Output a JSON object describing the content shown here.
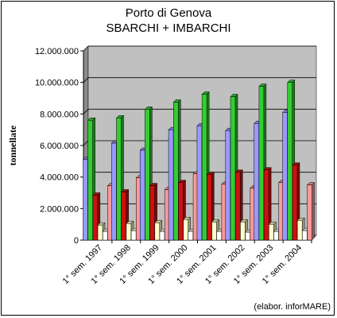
{
  "chart_data": {
    "type": "bar",
    "title": "Porto di Genova",
    "subtitle": "SBARCHI + IMBARCHI",
    "ylabel": "tonnellate",
    "xlabel": "",
    "credit": "(elabor. inforMARE)",
    "categories": [
      "1° sem. 1997",
      "1° sem. 1998",
      "1° sem. 1999",
      "1° sem. 2000",
      "1° sem. 2001",
      "1° sem. 2002",
      "1° sem. 2003",
      "1° sem. 2004"
    ],
    "ylim": [
      0,
      12000000
    ],
    "yticks": [
      0,
      2000000,
      4000000,
      6000000,
      8000000,
      10000000,
      12000000
    ],
    "ytick_labels": [
      "0",
      "2.000.000",
      "4.000.000",
      "6.000.000",
      "8.000.000",
      "10.000.000",
      "12.000.000"
    ],
    "grid": true,
    "plot_background": "#c0c0c0",
    "series": [
      {
        "color": "#9999ff",
        "values": [
          5100000,
          6150000,
          5700000,
          7000000,
          7250000,
          6950000,
          7400000,
          8100000
        ]
      },
      {
        "color": "#33cc33",
        "values": [
          7600000,
          7750000,
          8300000,
          8750000,
          9250000,
          9100000,
          9750000,
          10000000
        ]
      },
      {
        "color": "#cc1111",
        "values": [
          2850000,
          3050000,
          3450000,
          3650000,
          4150000,
          4300000,
          4450000,
          4750000
        ]
      },
      {
        "color": "#ffffcc",
        "values": [
          950000,
          1050000,
          1100000,
          1300000,
          1150000,
          1150000,
          1000000,
          1250000
        ]
      },
      {
        "color": "#ffffff",
        "values": [
          550000,
          600000,
          550000,
          550000,
          550000,
          500000,
          550000,
          600000
        ]
      },
      {
        "color": "#ff9999",
        "values": [
          3450000,
          3950000,
          3200000,
          4200000,
          3550000,
          3300000,
          3650000,
          3500000
        ]
      }
    ]
  }
}
